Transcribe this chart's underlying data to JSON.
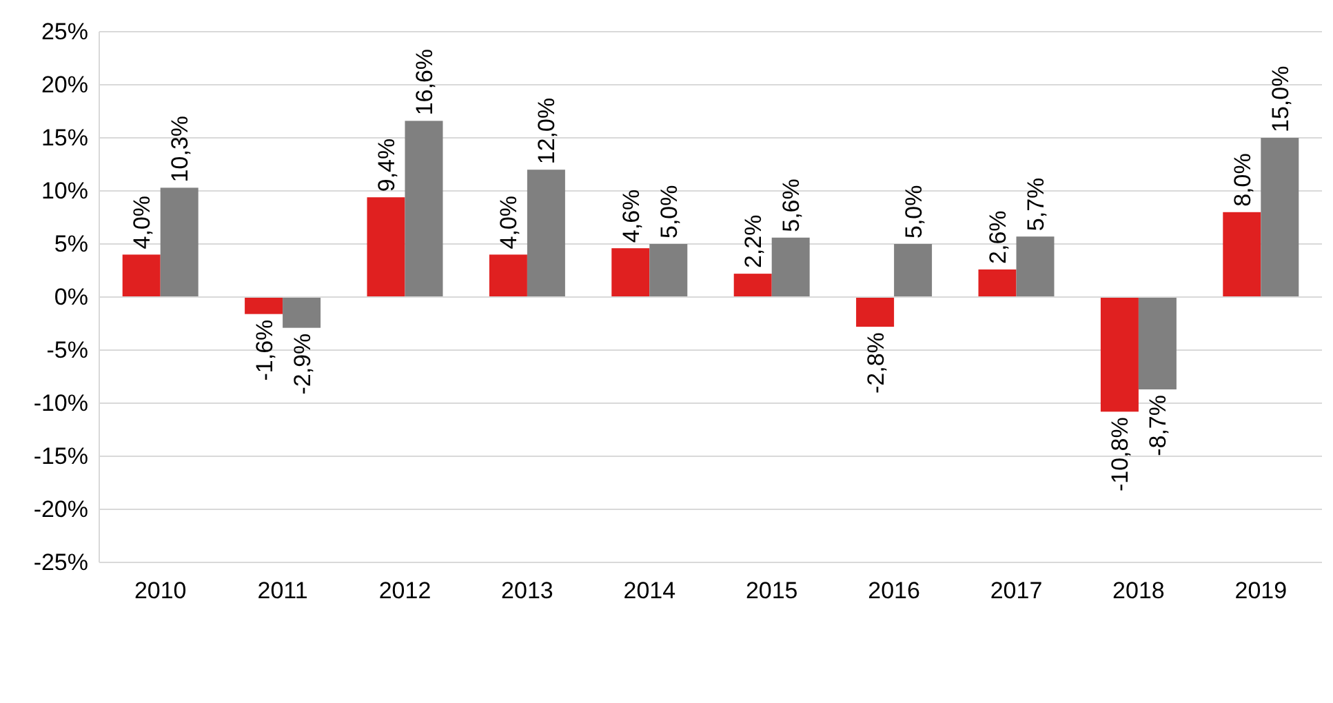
{
  "chart_data": {
    "type": "bar",
    "categories": [
      "2010",
      "2011",
      "2012",
      "2013",
      "2014",
      "2015",
      "2016",
      "2017",
      "2018",
      "2019"
    ],
    "series": [
      {
        "color": "#e02020",
        "values": [
          4.0,
          -1.6,
          9.4,
          4.0,
          4.6,
          2.2,
          -2.8,
          2.6,
          -10.8,
          8.0
        ],
        "value_labels": [
          "4,0%",
          "-1,6%",
          "9,4%",
          "4,0%",
          "4,6%",
          "2,2%",
          "-2,8%",
          "2,6%",
          "-10,8%",
          "8,0%"
        ]
      },
      {
        "color": "#808080",
        "values": [
          10.3,
          -2.9,
          16.6,
          12.0,
          5.0,
          5.6,
          5.0,
          5.7,
          -8.7,
          15.0
        ],
        "value_labels": [
          "10,3%",
          "-2,9%",
          "16,6%",
          "12,0%",
          "5,0%",
          "5,6%",
          "5,0%",
          "5,7%",
          "-8,7%",
          "15,0%"
        ]
      }
    ],
    "ylim": [
      -25,
      25
    ],
    "yticks": [
      {
        "value": -25,
        "label": "-25%"
      },
      {
        "value": -20,
        "label": "-20%"
      },
      {
        "value": -15,
        "label": "-15%"
      },
      {
        "value": -10,
        "label": "-10%"
      },
      {
        "value": -5,
        "label": "-5%"
      },
      {
        "value": 0,
        "label": "0%"
      },
      {
        "value": 5,
        "label": "5%"
      },
      {
        "value": 10,
        "label": "10%"
      },
      {
        "value": 15,
        "label": "15%"
      },
      {
        "value": 20,
        "label": "20%"
      },
      {
        "value": 25,
        "label": "25%"
      }
    ],
    "grid": "y"
  }
}
